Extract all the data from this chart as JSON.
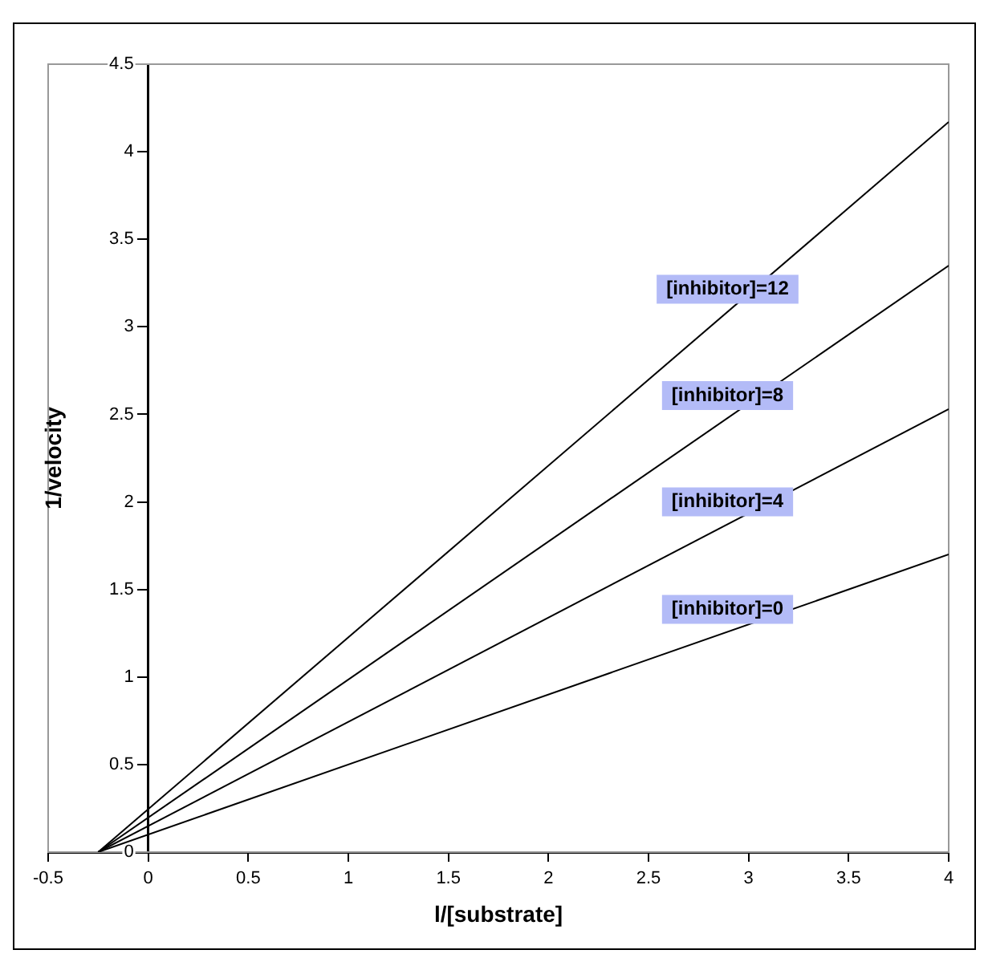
{
  "chart_data": {
    "type": "line",
    "xlabel": "l/[substrate]",
    "ylabel": "1/velocity",
    "x": [
      -0.25,
      4
    ],
    "series": [
      {
        "name": "[inhibitor]=0",
        "color": "#000000",
        "values": [
          0,
          1.7
        ]
      },
      {
        "name": "[inhibitor]=4",
        "color": "#000000",
        "values": [
          0,
          2.53
        ]
      },
      {
        "name": "[inhibitor]=8",
        "color": "#000000",
        "values": [
          0,
          3.35
        ]
      },
      {
        "name": "[inhibitor]=12",
        "color": "#000000",
        "values": [
          0,
          4.17
        ]
      }
    ],
    "xlim": [
      -0.5,
      4
    ],
    "xticks": [
      -0.5,
      0,
      0.5,
      1,
      1.5,
      2,
      2.5,
      3,
      3.5,
      4
    ],
    "ylim": [
      0,
      4.5
    ],
    "yticks": [
      0,
      0.5,
      1,
      1.5,
      2,
      2.5,
      3,
      3.5,
      4,
      4.5
    ],
    "marker": "none",
    "line_style": "solid"
  }
}
